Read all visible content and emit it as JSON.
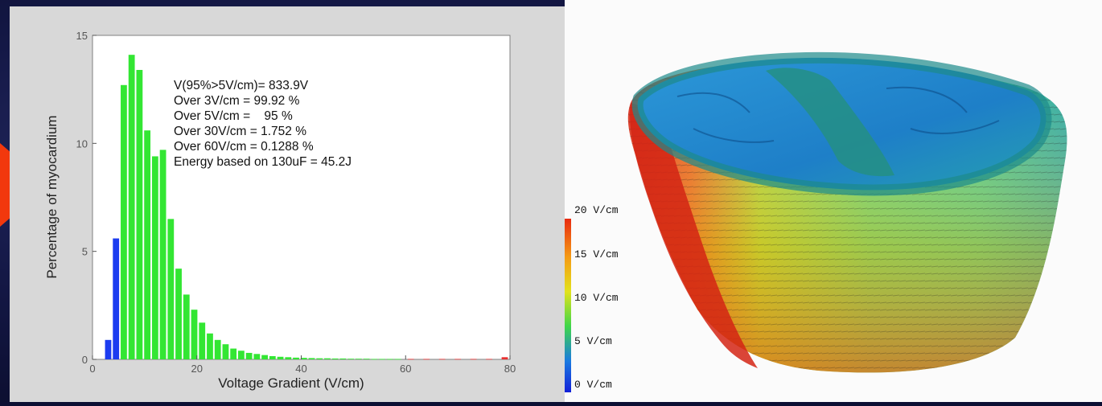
{
  "chart_data": {
    "type": "bar",
    "xlabel": "Voltage Gradient (V/cm)",
    "ylabel": "Percentage of myocardium",
    "xlim": [
      0,
      80
    ],
    "ylim": [
      0,
      15
    ],
    "xticks": [
      "0",
      "20",
      "40",
      "60",
      "80"
    ],
    "yticks": [
      "0",
      "5",
      "10",
      "15"
    ],
    "grid": false,
    "bar_width": 1.2,
    "series": [
      {
        "color": "#1c3cf0",
        "x": [
          3,
          4.5
        ],
        "values": [
          0.9,
          5.6
        ]
      },
      {
        "color": "#33e633",
        "x": [
          6,
          7.5,
          9,
          10.5,
          12,
          13.5,
          15,
          16.5,
          18,
          19.5,
          21,
          22.5,
          24,
          25.5,
          27,
          28.5,
          30,
          31.5,
          33,
          34.5,
          36,
          37.5,
          39,
          40.5,
          42,
          43.5,
          45,
          46.5,
          48,
          49.5,
          51,
          52.5,
          54,
          55.5,
          57,
          58.5
        ],
        "values": [
          12.7,
          14.1,
          13.4,
          10.6,
          9.4,
          9.7,
          6.5,
          4.2,
          3.0,
          2.3,
          1.7,
          1.2,
          0.9,
          0.7,
          0.5,
          0.4,
          0.3,
          0.25,
          0.2,
          0.15,
          0.12,
          0.1,
          0.08,
          0.07,
          0.06,
          0.05,
          0.05,
          0.04,
          0.04,
          0.03,
          0.03,
          0.03,
          0.02,
          0.02,
          0.02,
          0.02
        ]
      },
      {
        "color": "#e83030",
        "x": [
          61,
          64,
          67,
          70,
          73,
          76,
          79
        ],
        "values": [
          0.02,
          0.02,
          0.02,
          0.02,
          0.02,
          0.02,
          0.1
        ]
      }
    ],
    "annotations": [
      "V(95%>5V/cm)= 833.9V",
      "Over 3V/cm = 99.92 %",
      "Over 5V/cm =    95 %",
      "Over 30V/cm = 1.752 %",
      "Over 60V/cm = 0.1288 %",
      "Energy based on 130uF = 45.2J"
    ]
  },
  "colorbar": {
    "labels": [
      "20 V/cm",
      "15 V/cm",
      "10 V/cm",
      "5 V/cm",
      "0 V/cm"
    ],
    "colors": [
      "#e82a10",
      "#f59a14",
      "#e2e21c",
      "#3fd64a",
      "#1a7ae0",
      "#1220d8"
    ]
  },
  "colors": {
    "arrow": "#f2380d",
    "background": "#0c0f33"
  }
}
